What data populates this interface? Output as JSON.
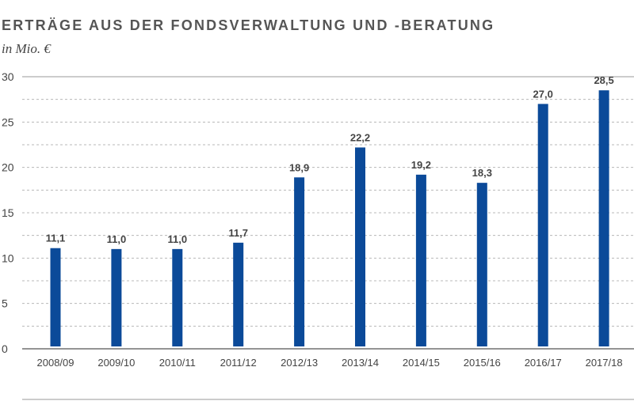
{
  "chart_data": {
    "type": "bar",
    "title": "ERTRÄGE AUS DER FONDSVERWALTUNG UND -BERATUNG",
    "subtitle": "in Mio. €",
    "categories": [
      "2008/09",
      "2009/10",
      "2010/11",
      "2011/12",
      "2012/13",
      "2013/14",
      "2014/15",
      "2015/16",
      "2016/17",
      "2017/18"
    ],
    "values": [
      11.1,
      11.0,
      11.0,
      11.7,
      18.9,
      22.2,
      19.2,
      18.3,
      27.0,
      28.5
    ],
    "value_labels": [
      "11,1",
      "11,0",
      "11,0",
      "11,7",
      "18,9",
      "22,2",
      "19,2",
      "18,3",
      "27,0",
      "28,5"
    ],
    "ylim": [
      0,
      30
    ],
    "yticks": [
      0,
      5,
      10,
      15,
      20,
      25,
      30
    ],
    "xlabel": "",
    "ylabel": "",
    "grid": true,
    "bar_color": "#0b4a99"
  }
}
